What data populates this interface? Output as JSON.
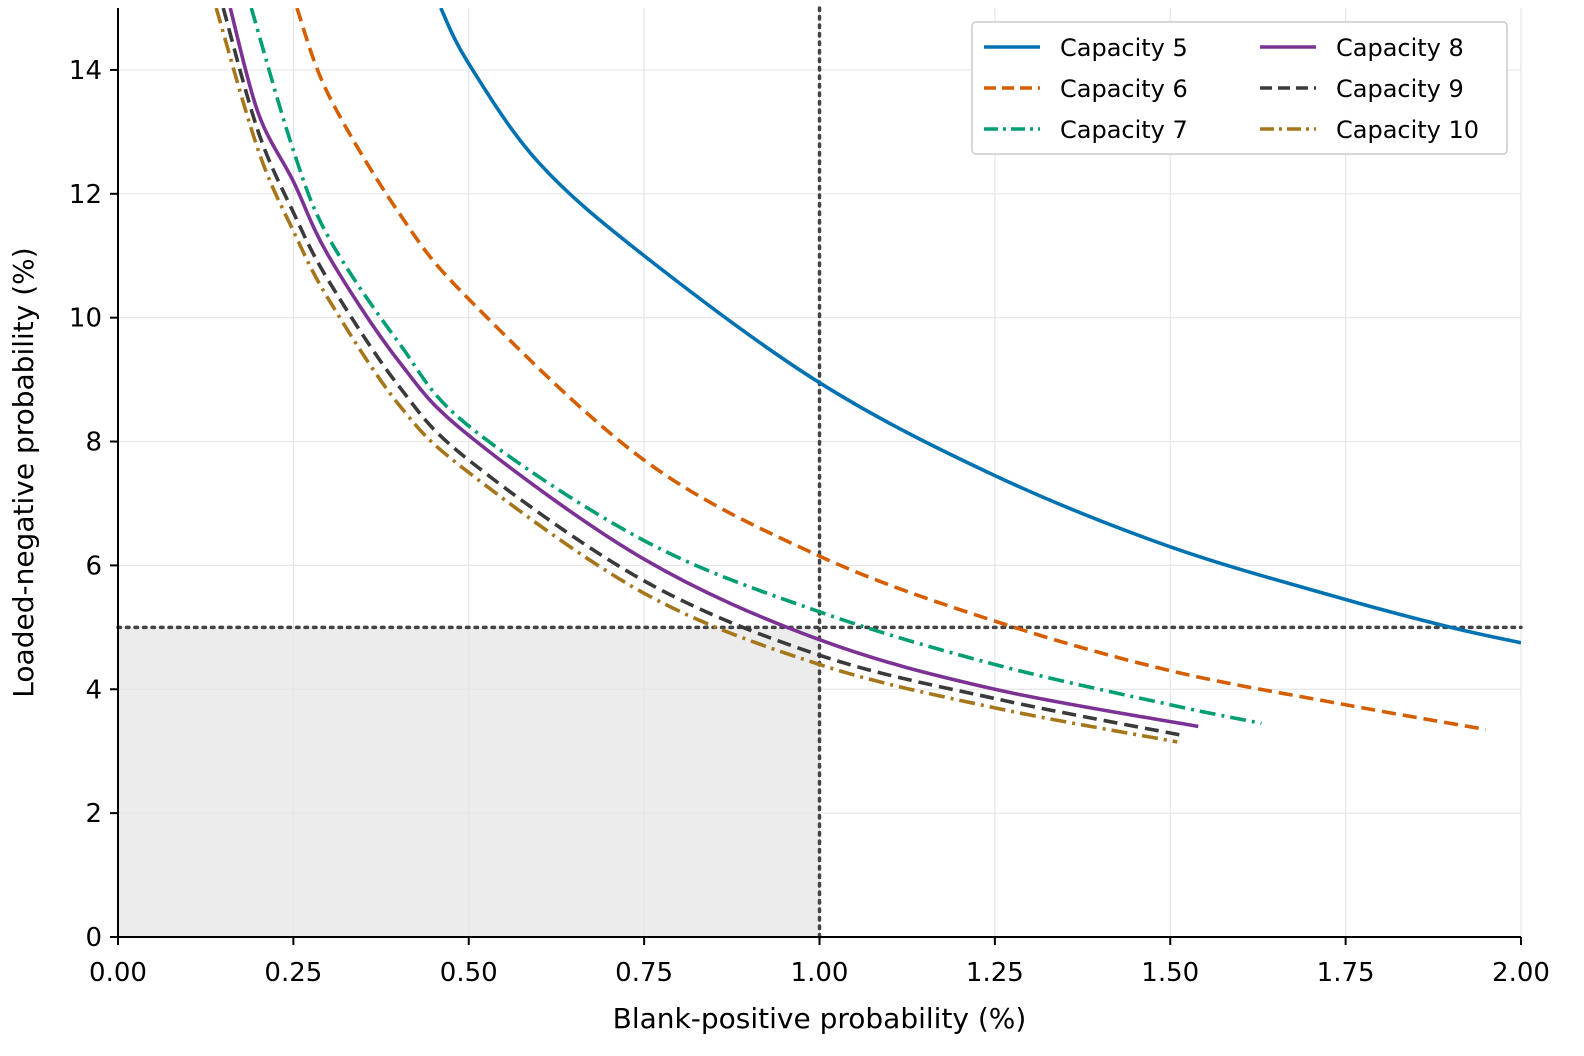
{
  "chart_data": {
    "type": "line",
    "xlabel": "Blank-positive probability (%)",
    "ylabel": "Loaded-negative probability (%)",
    "xlim": [
      0,
      2.0
    ],
    "ylim": [
      0,
      15
    ],
    "x_ticks": [
      "0.00",
      "0.25",
      "0.50",
      "0.75",
      "1.00",
      "1.25",
      "1.50",
      "1.75",
      "2.00"
    ],
    "y_ticks": [
      "0",
      "2",
      "4",
      "6",
      "8",
      "10",
      "12",
      "14"
    ],
    "grid": true,
    "legend_position": "top-right",
    "legend_columns": 2,
    "reference_lines": {
      "x": 1.0,
      "y": 5.0,
      "style": "dotted",
      "color": "#444444"
    },
    "acceptable_region": {
      "x": [
        0,
        1.0
      ],
      "y": [
        0,
        5.0
      ],
      "color": "#ececec"
    },
    "series": [
      {
        "name": "Capacity 5",
        "color": "#0072b2",
        "dash": "solid",
        "points": [
          [
            0.46,
            15.0
          ],
          [
            0.5,
            14.1
          ],
          [
            0.6,
            12.5
          ],
          [
            0.75,
            11.0
          ],
          [
            1.0,
            8.95
          ],
          [
            1.25,
            7.45
          ],
          [
            1.5,
            6.3
          ],
          [
            1.75,
            5.45
          ],
          [
            1.9,
            5.0
          ],
          [
            2.0,
            4.75
          ]
        ]
      },
      {
        "name": "Capacity 6",
        "color": "#d55e00",
        "dash": "dashed",
        "points": [
          [
            0.255,
            15.0
          ],
          [
            0.3,
            13.6
          ],
          [
            0.4,
            11.7
          ],
          [
            0.5,
            10.3
          ],
          [
            0.75,
            7.7
          ],
          [
            1.0,
            6.15
          ],
          [
            1.25,
            5.1
          ],
          [
            1.5,
            4.3
          ],
          [
            1.75,
            3.75
          ],
          [
            1.95,
            3.35
          ]
        ]
      },
      {
        "name": "Capacity 7",
        "color": "#009e73",
        "dash": "dashdot",
        "points": [
          [
            0.19,
            15.0
          ],
          [
            0.25,
            12.7
          ],
          [
            0.3,
            11.3
          ],
          [
            0.4,
            9.6
          ],
          [
            0.5,
            8.25
          ],
          [
            0.75,
            6.4
          ],
          [
            1.0,
            5.25
          ],
          [
            1.25,
            4.4
          ],
          [
            1.5,
            3.75
          ],
          [
            1.63,
            3.45
          ]
        ]
      },
      {
        "name": "Capacity 8",
        "color": "#7b3294",
        "dash": "solid",
        "points": [
          [
            0.16,
            15.0
          ],
          [
            0.2,
            13.3
          ],
          [
            0.25,
            12.2
          ],
          [
            0.3,
            11.0
          ],
          [
            0.4,
            9.3
          ],
          [
            0.5,
            8.1
          ],
          [
            0.75,
            6.1
          ],
          [
            1.0,
            4.8
          ],
          [
            1.25,
            4.0
          ],
          [
            1.54,
            3.4
          ]
        ]
      },
      {
        "name": "Capacity 9",
        "color": "#3a3a3a",
        "dash": "dashed",
        "points": [
          [
            0.15,
            15.0
          ],
          [
            0.2,
            13.0
          ],
          [
            0.25,
            11.7
          ],
          [
            0.3,
            10.6
          ],
          [
            0.4,
            8.9
          ],
          [
            0.5,
            7.7
          ],
          [
            0.75,
            5.75
          ],
          [
            1.0,
            4.55
          ],
          [
            1.25,
            3.85
          ],
          [
            1.52,
            3.25
          ]
        ]
      },
      {
        "name": "Capacity 10",
        "color": "#a6761d",
        "dash": "dashdot",
        "points": [
          [
            0.14,
            15.0
          ],
          [
            0.2,
            12.7
          ],
          [
            0.25,
            11.4
          ],
          [
            0.3,
            10.3
          ],
          [
            0.4,
            8.6
          ],
          [
            0.5,
            7.5
          ],
          [
            0.75,
            5.55
          ],
          [
            1.0,
            4.4
          ],
          [
            1.25,
            3.7
          ],
          [
            1.51,
            3.15
          ]
        ]
      }
    ]
  }
}
